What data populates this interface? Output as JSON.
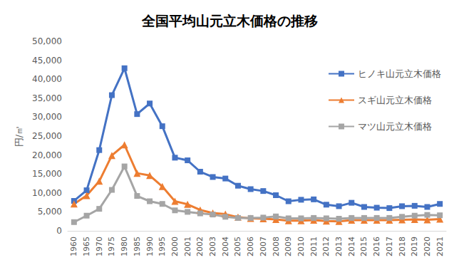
{
  "chart_data": {
    "type": "line",
    "title": "全国平均山元立木価格の推移",
    "y_label": "円/㎥",
    "categories": [
      "1960",
      "1965",
      "1970",
      "1975",
      "1980",
      "1985",
      "1990",
      "1995",
      "2000",
      "2001",
      "2002",
      "2003",
      "2004",
      "2005",
      "2006",
      "2007",
      "2008",
      "2009",
      "2010",
      "2011",
      "2012",
      "2013",
      "2014",
      "2015",
      "2016",
      "2017",
      "2018",
      "2019",
      "2020",
      "2021"
    ],
    "series": [
      {
        "name": "ヒノキ山元立木価格",
        "color": "#4472c4",
        "marker": "square",
        "line_style": "solid",
        "values": [
          7900,
          10700,
          21300,
          35800,
          42900,
          30800,
          33600,
          27600,
          19300,
          18600,
          15600,
          14200,
          13800,
          11900,
          11000,
          10500,
          9400,
          7800,
          8200,
          8300,
          6900,
          6500,
          7400,
          6300,
          6100,
          6000,
          6500,
          6600,
          6300,
          7100
        ]
      },
      {
        "name": "スギ山元立木価格",
        "color": "#ed7d31",
        "marker": "triangle",
        "line_style": "solid",
        "values": [
          7100,
          9300,
          13100,
          19900,
          22700,
          15200,
          14600,
          11700,
          7800,
          7000,
          5500,
          4700,
          4400,
          3600,
          3300,
          3200,
          3000,
          2700,
          2700,
          2800,
          2600,
          2500,
          2800,
          2800,
          2800,
          2800,
          2900,
          3000,
          2900,
          3100
        ]
      },
      {
        "name": "マツ山元立木価格",
        "color": "#a5a5a5",
        "marker": "square",
        "line_style": "solid",
        "values": [
          2300,
          4000,
          5800,
          10800,
          17000,
          9200,
          7800,
          7100,
          5400,
          5000,
          4600,
          4300,
          3700,
          3400,
          3400,
          3500,
          3800,
          3300,
          3300,
          3400,
          3300,
          3200,
          3400,
          3400,
          3400,
          3400,
          3700,
          4000,
          4200,
          4100
        ]
      }
    ],
    "ylim": [
      0,
      50000
    ],
    "yticks": [
      0,
      {
        "value": 5000,
        "label": "5,000"
      },
      {
        "value": 10000,
        "label": "10,000"
      },
      {
        "value": 15000,
        "label": "15,000"
      },
      {
        "value": 20000,
        "label": "20,000"
      },
      {
        "value": 25000,
        "label": "25,000"
      },
      {
        "value": 30000,
        "label": "30,000"
      },
      {
        "value": 35000,
        "label": "35,000"
      },
      {
        "value": 40000,
        "label": "40,000"
      },
      {
        "value": 45000,
        "label": "45,000"
      },
      {
        "value": 50000,
        "label": "50,000"
      }
    ],
    "grid": false,
    "legend": "right"
  }
}
